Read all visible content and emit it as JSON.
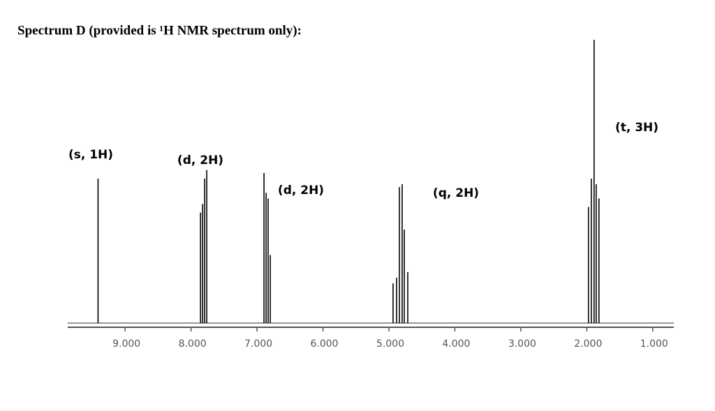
{
  "chart_data": {
    "type": "spectrum",
    "title": "Spectrum D (provided is ¹H NMR spectrum only):",
    "xlim": [
      9.87,
      0.68
    ],
    "ylim": [
      0,
      100
    ],
    "xticks": [
      {
        "value": 9,
        "label": "9.000"
      },
      {
        "value": 8,
        "label": "8.000"
      },
      {
        "value": 7,
        "label": "7.000"
      },
      {
        "value": 6,
        "label": "6.000"
      },
      {
        "value": 5,
        "label": "5.000"
      },
      {
        "value": 4,
        "label": "4.000"
      },
      {
        "value": 3,
        "label": "3.000"
      },
      {
        "value": 2,
        "label": "2.000"
      },
      {
        "value": 1,
        "label": "1.000"
      }
    ],
    "color": "#000000",
    "x": [
      9.41,
      7.857,
      7.825,
      7.794,
      7.762,
      6.894,
      6.862,
      6.831,
      6.799,
      4.937,
      4.884,
      4.841,
      4.799,
      4.767,
      4.714,
      1.974,
      1.931,
      1.889,
      1.857,
      1.815
    ],
    "values": [
      51,
      39,
      42,
      51,
      54,
      53,
      46,
      44,
      24,
      14,
      16,
      48,
      49,
      33,
      18,
      41,
      51,
      100,
      49,
      44
    ],
    "annotations": [
      "(s, 1H)",
      "(d, 2H)",
      "(d, 2H)",
      "(q, 2H)",
      "(t, 3H)"
    ]
  }
}
